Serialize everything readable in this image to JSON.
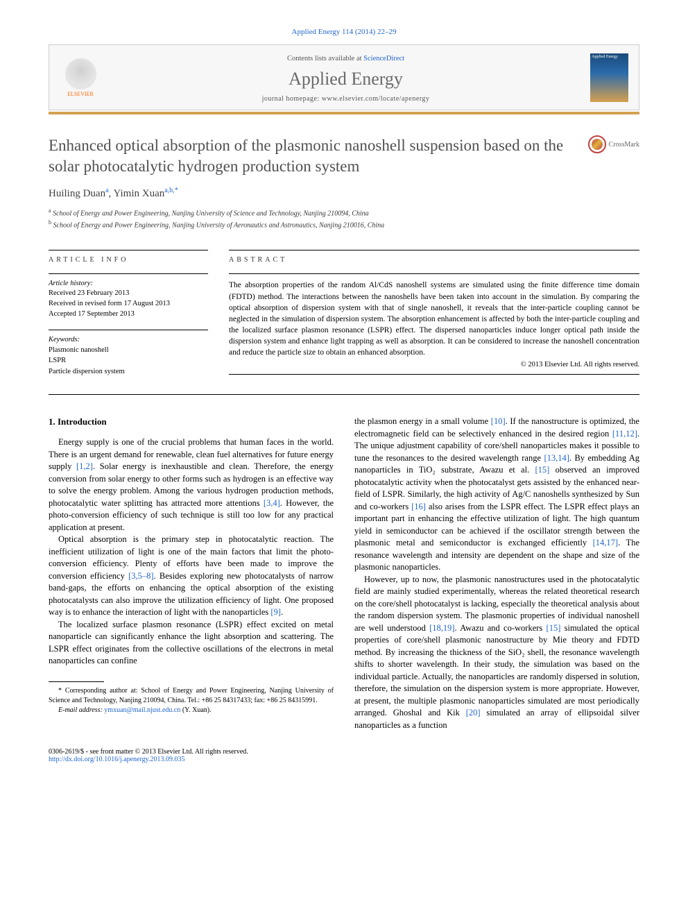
{
  "citation": "Applied Energy 114 (2014) 22–29",
  "banner": {
    "contents_text": "Contents lists available at ",
    "sciencedirect": "ScienceDirect",
    "journal_name": "Applied Energy",
    "homepage_text": "journal homepage: www.elsevier.com/locate/apenergy",
    "elsevier": "ELSEVIER",
    "cover_label": "Applied Energy"
  },
  "crossmark": "CrossMark",
  "title": "Enhanced optical absorption of the plasmonic nanoshell suspension based on the solar photocatalytic hydrogen production system",
  "authors": {
    "a1_name": "Huiling Duan",
    "a1_sup": "a",
    "a2_name": "Yimin Xuan",
    "a2_sup": "a,b,",
    "star": "*"
  },
  "affiliations": {
    "a": "School of Energy and Power Engineering, Nanjing University of Science and Technology, Nanjing 210094, China",
    "b": "School of Energy and Power Engineering, Nanjing University of Aeronautics and Astronautics, Nanjing 210016, China"
  },
  "info": {
    "label": "ARTICLE INFO",
    "history_head": "Article history:",
    "received": "Received 23 February 2013",
    "revised": "Received in revised form 17 August 2013",
    "accepted": "Accepted 17 September 2013",
    "keywords_head": "Keywords:",
    "k1": "Plasmonic nanoshell",
    "k2": "LSPR",
    "k3": "Particle dispersion system"
  },
  "abstract": {
    "label": "ABSTRACT",
    "text": "The absorption properties of the random Al/CdS nanoshell systems are simulated using the finite difference time domain (FDTD) method. The interactions between the nanoshells have been taken into account in the simulation. By comparing the optical absorption of dispersion system with that of single nanoshell, it reveals that the inter-particle coupling cannot be neglected in the simulation of dispersion system. The absorption enhancement is affected by both the inter-particle coupling and the localized surface plasmon resonance (LSPR) effect. The dispersed nanoparticles induce longer optical path inside the dispersion system and enhance light trapping as well as absorption. It can be considered to increase the nanoshell concentration and reduce the particle size to obtain an enhanced absorption.",
    "copyright": "© 2013 Elsevier Ltd. All rights reserved."
  },
  "body": {
    "heading1": "1. Introduction",
    "p1a": "Energy supply is one of the crucial problems that human faces in the world. There is an urgent demand for renewable, clean fuel alternatives for future energy supply ",
    "r1": "[1,2]",
    "p1b": ". Solar energy is inexhaustible and clean. Therefore, the energy conversion from solar energy to other forms such as hydrogen is an effective way to solve the energy problem. Among the various hydrogen production methods, photocatalytic water splitting has attracted more attentions ",
    "r2": "[3,4]",
    "p1c": ". However, the photo-conversion efficiency of such technique is still too low for any practical application at present.",
    "p2a": "Optical absorption is the primary step in photocatalytic reaction. The inefficient utilization of light is one of the main factors that limit the photo-conversion efficiency. Plenty of efforts have been made to improve the conversion efficiency ",
    "r3": "[3,5–8]",
    "p2b": ". Besides exploring new photocatalysts of narrow band-gaps, the efforts on enhancing the optical absorption of the existing photocatalysts can also improve the utilization efficiency of light. One proposed way is to enhance the interaction of light with the nanoparticles ",
    "r4": "[9]",
    "p2c": ".",
    "p3": "The localized surface plasmon resonance (LSPR) effect excited on metal nanoparticle can significantly enhance the light absorption and scattering. The LSPR effect originates from the collective oscillations of the electrons in metal nanoparticles can confine",
    "p4a": "the plasmon energy in a small volume ",
    "r5": "[10]",
    "p4b": ". If the nanostructure is optimized, the electromagnetic field can be selectively enhanced in the desired region ",
    "r6": "[11,12]",
    "p4c": ". The unique adjustment capability of core/shell nanoparticles makes it possible to tune the resonances to the desired wavelength range ",
    "r7": "[13,14]",
    "p4d": ". By embedding Ag nanoparticles in TiO₂ substrate, Awazu et al. ",
    "r8": "[15]",
    "p4e": " observed an improved photocatalytic activity when the photocatalyst gets assisted by the enhanced near-field of LSPR. Similarly, the high activity of Ag/C nanoshells synthesized by Sun and co-workers ",
    "r9": "[16]",
    "p4f": " also arises from the LSPR effect. The LSPR effect plays an important part in enhancing the effective utilization of light. The high quantum yield in semiconductor can be achieved if the oscillator strength between the plasmonic metal and semiconductor is exchanged efficiently ",
    "r10": "[14,17]",
    "p4g": ". The resonance wavelength and intensity are dependent on the shape and size of the plasmonic nanoparticles.",
    "p5a": "However, up to now, the plasmonic nanostructures used in the photocatalytic field are mainly studied experimentally, whereas the related theoretical research on the core/shell photocatalyst is lacking, especially the theoretical analysis about the random dispersion system. The plasmonic properties of individual nanoshell are well understood ",
    "r11": "[18,19]",
    "p5b": ". Awazu and co-workers ",
    "r12": "[15]",
    "p5c": " simulated the optical properties of core/shell plasmonic nanostructure by Mie theory and FDTD method. By increasing the thickness of the SiO₂ shell, the resonance wavelength shifts to shorter wavelength. In their study, the simulation was based on the individual particle. Actually, the nanoparticles are randomly dispersed in solution, therefore, the simulation on the dispersion system is more appropriate. However, at present, the multiple plasmonic nanoparticles simulated are most periodically arranged. Ghoshal and Kik ",
    "r13": "[20]",
    "p5d": " simulated an array of ellipsoidal silver nanoparticles as a function"
  },
  "footnote": {
    "corr": "* Corresponding author at: School of Energy and Power Engineering, Nanjing University of Science and Technology, Nanjing 210094, China. Tel.: +86 25 84317433; fax: +86 25 84315991.",
    "email_label": "E-mail address: ",
    "email": "ymxuan@mail.njust.edu.cn",
    "email_who": " (Y. Xuan)."
  },
  "footer": {
    "issn": "0306-2619/$ - see front matter © 2013 Elsevier Ltd. All rights reserved.",
    "doi": "http://dx.doi.org/10.1016/j.apenergy.2013.09.035"
  },
  "colors": {
    "link": "#2266cc",
    "orange_bar": "#d4a050",
    "elsevier_orange": "#ff6600",
    "title_gray": "#505050"
  }
}
